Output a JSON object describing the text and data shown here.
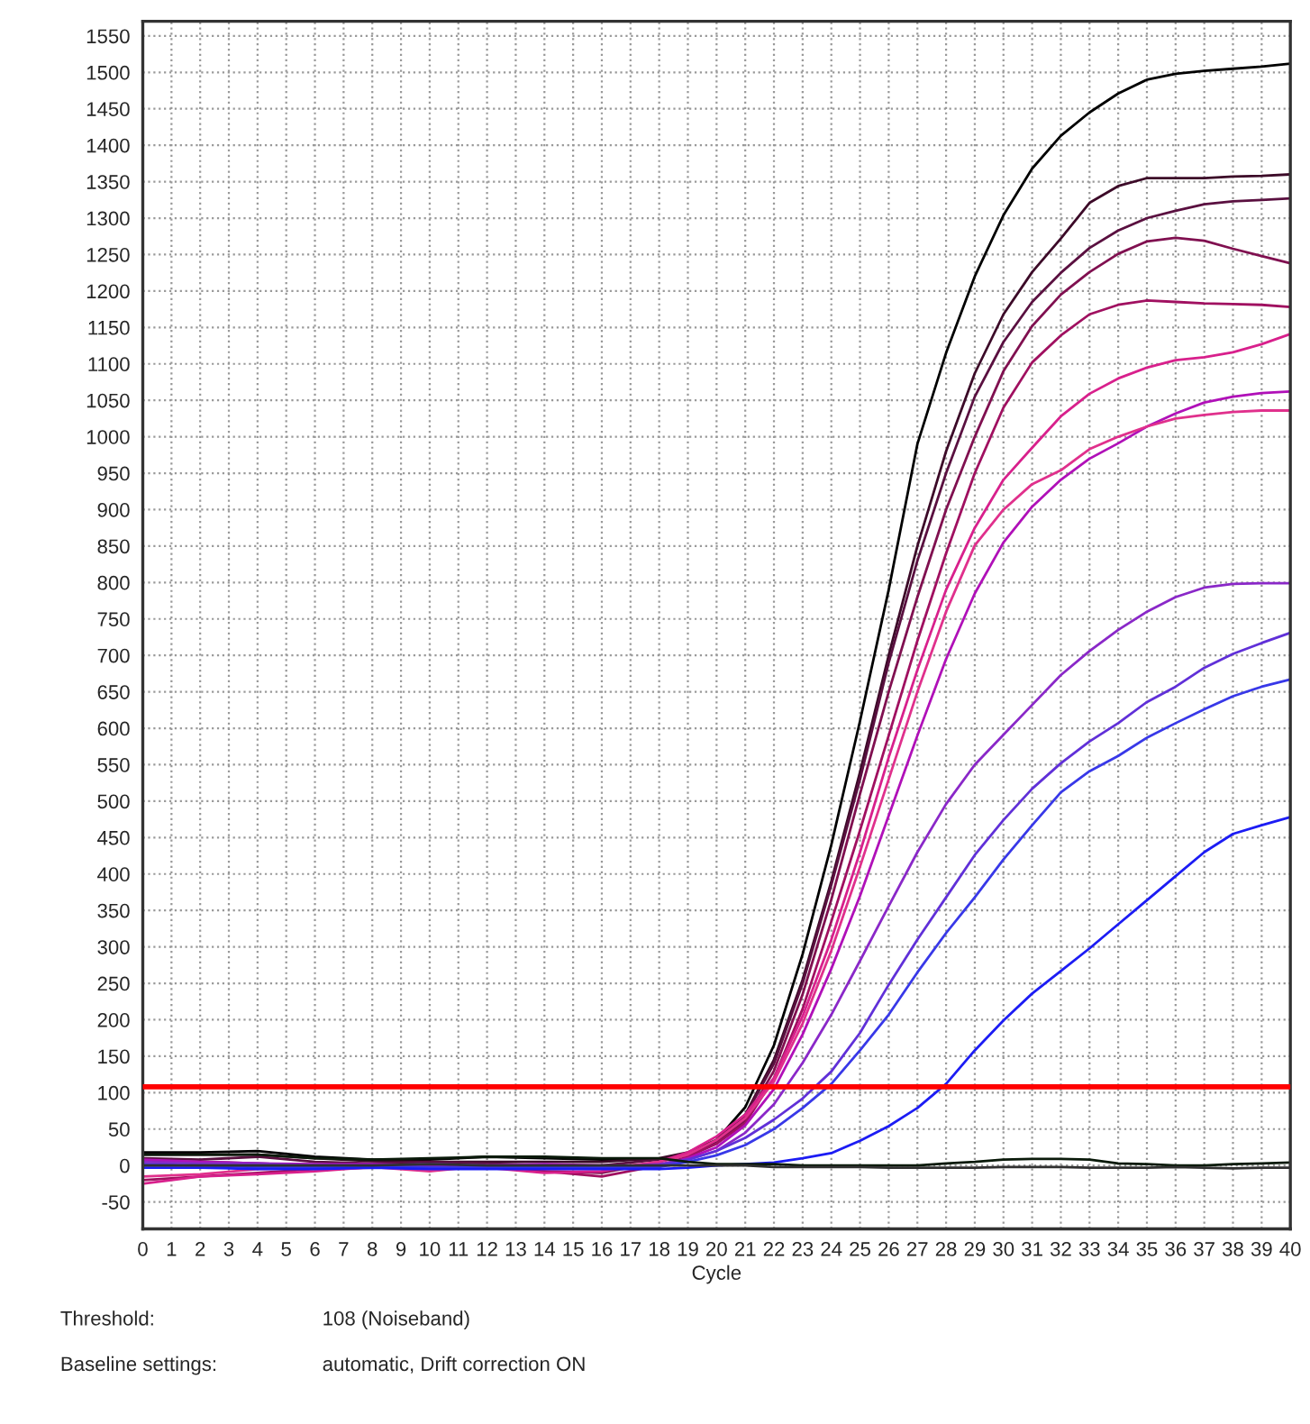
{
  "chart_data": {
    "type": "line",
    "xlabel": "Cycle",
    "x": [
      0,
      2,
      4,
      6,
      8,
      10,
      12,
      14,
      16,
      18,
      19,
      20,
      21,
      22,
      23,
      24,
      25,
      26,
      27,
      28,
      29,
      30,
      31,
      32,
      33,
      34,
      35,
      36,
      37,
      38,
      39,
      40
    ],
    "series": [
      {
        "color": "#000000",
        "values": [
          18,
          18,
          20,
          12,
          8,
          8,
          12,
          10,
          8,
          8,
          15,
          35,
          80,
          165,
          290,
          440,
          610,
          790,
          990,
          1115,
          1220,
          1304,
          1368,
          1413,
          1445,
          1471,
          1490,
          1498,
          1502,
          1505,
          1508,
          1512
        ]
      },
      {
        "color": "#3c0a28",
        "values": [
          15,
          15,
          15,
          10,
          6,
          5,
          5,
          5,
          5,
          10,
          18,
          35,
          70,
          145,
          255,
          390,
          540,
          700,
          850,
          980,
          1087,
          1168,
          1226,
          1272,
          1321,
          1344,
          1355,
          1355,
          1355,
          1357,
          1358,
          1360
        ]
      },
      {
        "color": "#5a1040",
        "values": [
          10,
          8,
          12,
          5,
          3,
          5,
          3,
          0,
          0,
          8,
          15,
          32,
          68,
          140,
          250,
          385,
          530,
          690,
          830,
          950,
          1055,
          1130,
          1185,
          1225,
          1259,
          1283,
          1300,
          1310,
          1319,
          1323,
          1325,
          1327
        ]
      },
      {
        "color": "#801050",
        "values": [
          5,
          5,
          3,
          0,
          -2,
          -5,
          0,
          -8,
          -10,
          5,
          15,
          30,
          62,
          130,
          235,
          365,
          510,
          650,
          780,
          900,
          1000,
          1090,
          1152,
          1195,
          1226,
          1251,
          1268,
          1273,
          1269,
          1258,
          1248,
          1238
        ]
      },
      {
        "color": "#a01060",
        "values": [
          -20,
          -15,
          -10,
          -5,
          -3,
          0,
          -2,
          -8,
          -15,
          0,
          12,
          30,
          58,
          120,
          215,
          335,
          460,
          590,
          720,
          840,
          950,
          1040,
          1102,
          1139,
          1168,
          1181,
          1187,
          1185,
          1183,
          1182,
          1181,
          1178
        ]
      },
      {
        "color": "#d8208c",
        "values": [
          -25,
          -15,
          -12,
          -8,
          -2,
          -5,
          -3,
          -10,
          -8,
          5,
          18,
          40,
          70,
          120,
          205,
          310,
          430,
          560,
          680,
          790,
          875,
          941,
          985,
          1028,
          1059,
          1080,
          1095,
          1105,
          1109,
          1116,
          1127,
          1141
        ]
      },
      {
        "color": "#b010b8",
        "values": [
          8,
          5,
          3,
          2,
          2,
          0,
          0,
          2,
          0,
          0,
          10,
          25,
          55,
          105,
          180,
          270,
          370,
          480,
          590,
          695,
          785,
          855,
          904,
          941,
          970,
          991,
          1014,
          1032,
          1047,
          1055,
          1060,
          1062
        ]
      },
      {
        "color": "#e0308c",
        "values": [
          -15,
          -12,
          -5,
          -3,
          -2,
          -8,
          0,
          -5,
          -5,
          5,
          15,
          35,
          65,
          115,
          195,
          295,
          410,
          530,
          650,
          760,
          851,
          900,
          935,
          954,
          983,
          1000,
          1014,
          1025,
          1030,
          1034,
          1036,
          1036
        ]
      },
      {
        "color": "#8a28c8",
        "values": [
          5,
          3,
          3,
          0,
          0,
          2,
          0,
          0,
          -3,
          2,
          8,
          20,
          45,
          84,
          141,
          207,
          281,
          356,
          430,
          496,
          550,
          591,
          632,
          673,
          706,
          735,
          760,
          780,
          793,
          798,
          799,
          799
        ]
      },
      {
        "color": "#6030d8",
        "values": [
          2,
          0,
          0,
          0,
          0,
          -2,
          -2,
          0,
          -3,
          0,
          8,
          20,
          38,
          63,
          92,
          129,
          182,
          248,
          310,
          368,
          426,
          474,
          517,
          552,
          582,
          607,
          636,
          657,
          683,
          702,
          717,
          731
        ]
      },
      {
        "color": "#3838e8",
        "values": [
          0,
          0,
          -2,
          -2,
          -2,
          -3,
          -3,
          -2,
          -3,
          -2,
          5,
          14,
          28,
          50,
          79,
          112,
          158,
          207,
          265,
          319,
          368,
          420,
          467,
          512,
          541,
          562,
          587,
          607,
          626,
          644,
          657,
          667
        ]
      },
      {
        "color": "#1c1cf4",
        "values": [
          -3,
          -3,
          -5,
          -5,
          -3,
          -5,
          -5,
          -5,
          -5,
          -5,
          -3,
          0,
          2,
          4,
          10,
          17,
          34,
          54,
          79,
          112,
          158,
          199,
          236,
          267,
          298,
          331,
          364,
          397,
          430,
          455,
          467,
          478
        ]
      },
      {
        "color": "#0a1a0a",
        "values": [
          15,
          15,
          15,
          10,
          8,
          10,
          12,
          12,
          10,
          10,
          5,
          2,
          2,
          2,
          0,
          0,
          0,
          0,
          0,
          3,
          5,
          8,
          9,
          9,
          8,
          3,
          2,
          0,
          0,
          2,
          3,
          4
        ]
      },
      {
        "color": "#303030",
        "values": [
          0,
          0,
          0,
          0,
          0,
          2,
          0,
          0,
          0,
          0,
          0,
          0,
          0,
          -2,
          -2,
          -2,
          -2,
          -3,
          -3,
          -3,
          -3,
          -2,
          -2,
          -2,
          -3,
          -3,
          -3,
          -2,
          -3,
          -4,
          -3,
          -3
        ]
      }
    ],
    "xlim": [
      0,
      40
    ],
    "ylim": [
      -87,
      1570
    ],
    "xticks": [
      0,
      1,
      2,
      3,
      4,
      5,
      6,
      7,
      8,
      9,
      10,
      11,
      12,
      13,
      14,
      15,
      16,
      17,
      18,
      19,
      20,
      21,
      22,
      23,
      24,
      25,
      26,
      27,
      28,
      29,
      30,
      31,
      32,
      33,
      34,
      35,
      36,
      37,
      38,
      39,
      40
    ],
    "yticks": [
      -50,
      0,
      50,
      100,
      150,
      200,
      250,
      300,
      350,
      400,
      450,
      500,
      550,
      600,
      650,
      700,
      750,
      800,
      850,
      900,
      950,
      1000,
      1050,
      1100,
      1150,
      1200,
      1250,
      1300,
      1350,
      1400,
      1450,
      1500,
      1550
    ],
    "grid": true,
    "ref_lines": [
      {
        "axis": "y",
        "value": 108,
        "color": "#ff0000"
      }
    ],
    "annotations": [
      "Threshold:",
      "108 (Noiseband)",
      "Baseline settings:",
      "automatic, Drift correction ON"
    ]
  }
}
